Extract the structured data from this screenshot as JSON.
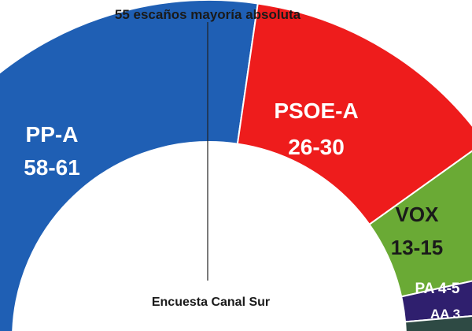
{
  "chart_data": {
    "type": "pie",
    "variant": "half-donut parliament",
    "majority_label": "55 escaños mayoría absoluta",
    "footer_label": "Encuesta Canal Sur",
    "series": [
      {
        "name": "PP-A",
        "range": "58-61",
        "label": "PP-A",
        "value": 59.5,
        "color": "#1f5fb4"
      },
      {
        "name": "PSOE-A",
        "range": "26-30",
        "label": "PSOE-A",
        "value": 28,
        "color": "#ee1c1c"
      },
      {
        "name": "VOX",
        "range": "13-15",
        "label": "VOX",
        "value": 14,
        "color": "#6aaa35"
      },
      {
        "name": "PA",
        "range": "4-5",
        "label": "PA 4-5",
        "value": 4.5,
        "color": "#2f1f6e"
      },
      {
        "name": "AA",
        "range": "3",
        "label": "AA 3",
        "value": 3,
        "color": "#2e4a44"
      }
    ]
  }
}
